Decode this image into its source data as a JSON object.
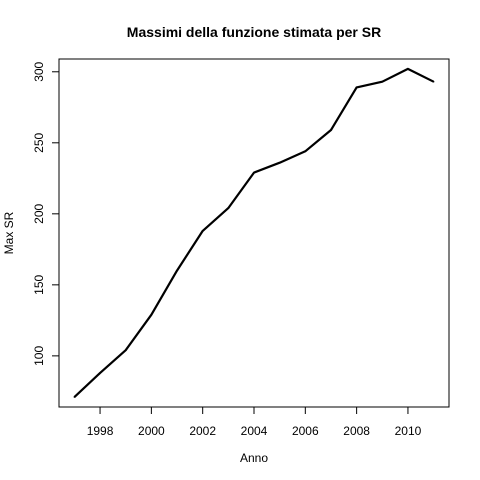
{
  "chart_data": {
    "type": "line",
    "title": "Massimi della funzione stimata per SR",
    "xlabel": "Anno",
    "ylabel": "Max SR",
    "xlim": [
      1996.4,
      2011.6
    ],
    "ylim": [
      64,
      309
    ],
    "xticks": [
      1998,
      2000,
      2002,
      2004,
      2006,
      2008,
      2010
    ],
    "yticks": [
      100,
      150,
      200,
      250,
      300
    ],
    "grid": false,
    "legend": "none",
    "line_color": "#000000",
    "series": [
      {
        "x": [
          1997,
          1998,
          1999,
          2000,
          2001,
          2002,
          2003,
          2004,
          2005,
          2006,
          2007,
          2008,
          2009,
          2010,
          2011
        ],
        "values": [
          71,
          88,
          104,
          129,
          160,
          188,
          204,
          229,
          236,
          244,
          259,
          289,
          293,
          302,
          293
        ]
      }
    ]
  }
}
